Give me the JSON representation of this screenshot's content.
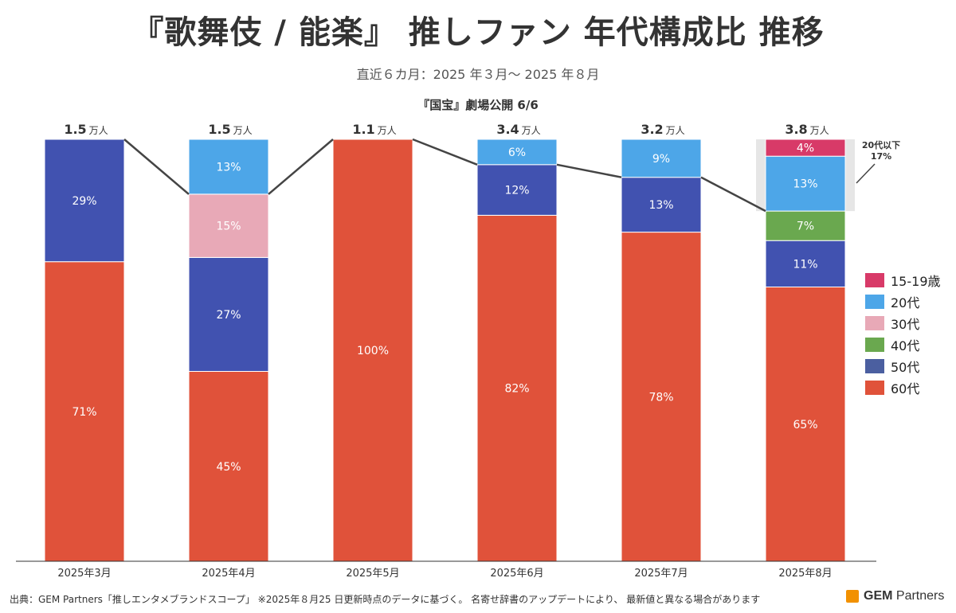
{
  "title": "『歌舞伎 / 能楽』 推しファン 年代構成比 推移",
  "subtitle": "直近６カ月：2025 年３月～ 2025 年８月",
  "annotation": "『国宝』劇場公開 6/6",
  "source": "出典：GEM Partners「推しエンタメブランドスコープ」 ※2025年８月25 日更新時点のデータに基づく。 名寄せ辞書のアップデートにより、 最新値と異なる場合があります",
  "logo": {
    "brand": "GEM",
    "suffix": " Partners",
    "color": "#f29100"
  },
  "chart_data": {
    "type": "bar",
    "stacked": true,
    "categories": [
      "2025年3月",
      "2025年4月",
      "2025年5月",
      "2025年6月",
      "2025年7月",
      "2025年8月"
    ],
    "totals": [
      {
        "value": "1.5",
        "unit": "万人"
      },
      {
        "value": "1.5",
        "unit": "万人"
      },
      {
        "value": "1.1",
        "unit": "万人"
      },
      {
        "value": "3.4",
        "unit": "万人"
      },
      {
        "value": "3.2",
        "unit": "万人"
      },
      {
        "value": "3.8",
        "unit": "万人"
      }
    ],
    "series": [
      {
        "name": "60代",
        "color": "#e0523a",
        "values": [
          71,
          45,
          100,
          82,
          78,
          65
        ]
      },
      {
        "name": "50代",
        "color": "#4152b0",
        "values": [
          29,
          27,
          0,
          12,
          13,
          11
        ]
      },
      {
        "name": "40代",
        "color": "#6aa84f",
        "values": [
          0,
          0,
          0,
          0,
          0,
          7
        ]
      },
      {
        "name": "30代",
        "color": "#e8a9b7",
        "values": [
          0,
          15,
          0,
          0,
          0,
          0
        ]
      },
      {
        "name": "20代",
        "color": "#4da6e8",
        "values": [
          0,
          13,
          0,
          6,
          9,
          13
        ]
      },
      {
        "name": "15-19歳",
        "color": "#d83a68",
        "values": [
          0,
          0,
          0,
          0,
          0,
          4
        ]
      }
    ],
    "legend": [
      {
        "name": "15-19歳",
        "color": "#d83a68"
      },
      {
        "name": "20代",
        "color": "#4da6e8"
      },
      {
        "name": "30代",
        "color": "#e8a9b7"
      },
      {
        "name": "40代",
        "color": "#6aa84f"
      },
      {
        "name": "50代",
        "color": "#4b5fa0"
      },
      {
        "name": "60代",
        "color": "#e0523a"
      }
    ],
    "legend_position": "right",
    "callout": {
      "title": "20代以下",
      "value": "17%"
    },
    "ylim": [
      0,
      100
    ],
    "grid": false
  }
}
